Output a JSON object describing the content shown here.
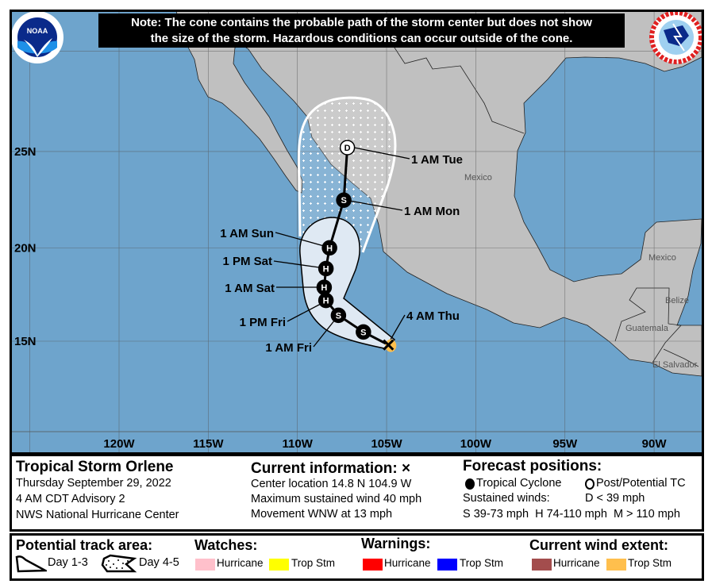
{
  "note": {
    "line1": "Note: The cone contains the probable path of the storm center but does not show",
    "line2": "the size of the storm. Hazardous conditions can occur outside of the cone."
  },
  "logos": {
    "left": "NOAA",
    "right": "NATIONAL WEATHER SERVICE"
  },
  "colors": {
    "ocean": "#6ea4cc",
    "land": "#c0c0c0",
    "cone_day13": "#dfe9f3",
    "watch_hurricane": "#ffc0cb",
    "watch_tropstm": "#ffff00",
    "warning_hurricane": "#ff0000",
    "warning_tropstm": "#0000ff",
    "wind_hurricane": "#a34d4d",
    "wind_tropstm": "#ffbf4d"
  },
  "map": {
    "lon_ticks": [
      {
        "label": "120W",
        "lon": -120
      },
      {
        "label": "115W",
        "lon": -115
      },
      {
        "label": "110W",
        "lon": -110
      },
      {
        "label": "105W",
        "lon": -105
      },
      {
        "label": "100W",
        "lon": -100
      },
      {
        "label": "95W",
        "lon": -95
      },
      {
        "label": "90W",
        "lon": -90
      }
    ],
    "lat_ticks": [
      {
        "label": "25N",
        "lat": 25
      },
      {
        "label": "20N",
        "lat": 20
      },
      {
        "label": "15N",
        "lat": 15
      }
    ],
    "countries": [
      "Mexico",
      "Mexico",
      "Belize",
      "Guatemala",
      "El Salvador"
    ],
    "track": [
      {
        "symbol": "X",
        "type": "current",
        "lat": 14.8,
        "lon": -104.9,
        "label": "4 AM Thu"
      },
      {
        "symbol": "S",
        "type": "tropical",
        "lat": 15.5,
        "lon": -106.3,
        "label": ""
      },
      {
        "symbol": "S",
        "type": "tropical",
        "lat": 16.4,
        "lon": -107.7,
        "label": "1 AM Fri"
      },
      {
        "symbol": "H",
        "type": "tropical",
        "lat": 17.2,
        "lon": -108.4,
        "label": "1 PM Fri"
      },
      {
        "symbol": "H",
        "type": "tropical",
        "lat": 17.9,
        "lon": -108.5,
        "label": "1 AM Sat"
      },
      {
        "symbol": "H",
        "type": "tropical",
        "lat": 18.9,
        "lon": -108.4,
        "label": "1 PM Sat"
      },
      {
        "symbol": "H",
        "type": "tropical",
        "lat": 20.0,
        "lon": -108.2,
        "label": "1 AM Sun"
      },
      {
        "symbol": "S",
        "type": "tropical",
        "lat": 22.5,
        "lon": -107.4,
        "label": "1 AM Mon"
      },
      {
        "symbol": "D",
        "type": "post",
        "lat": 25.2,
        "lon": -107.2,
        "label": "1 AM Tue"
      }
    ]
  },
  "info": {
    "storm_name": "Tropical Storm Orlene",
    "date": "Thursday September 29, 2022",
    "advisory": "4 AM CDT Advisory 2",
    "center": "NWS National Hurricane Center",
    "current_title": "Current information:",
    "current_symbol": "×",
    "location": "Center location 14.8 N 104.9 W",
    "max_wind": "Maximum sustained wind 40 mph",
    "movement": "Movement WNW at 13 mph",
    "forecast_title": "Forecast positions:",
    "tropical_cyclone": "Tropical Cyclone",
    "post_potential": "Post/Potential TC",
    "sustained_winds": "Sustained winds:",
    "d_def": "D < 39 mph",
    "shm_def": "S 39-73 mph  H 74-110 mph  M > 110 mph"
  },
  "legend": {
    "track_area_title": "Potential track area:",
    "day13": "Day 1-3",
    "day45": "Day 4-5",
    "watches_title": "Watches:",
    "warnings_title": "Warnings:",
    "wind_title": "Current wind extent:",
    "hurricane": "Hurricane",
    "trop_stm": "Trop Stm"
  }
}
